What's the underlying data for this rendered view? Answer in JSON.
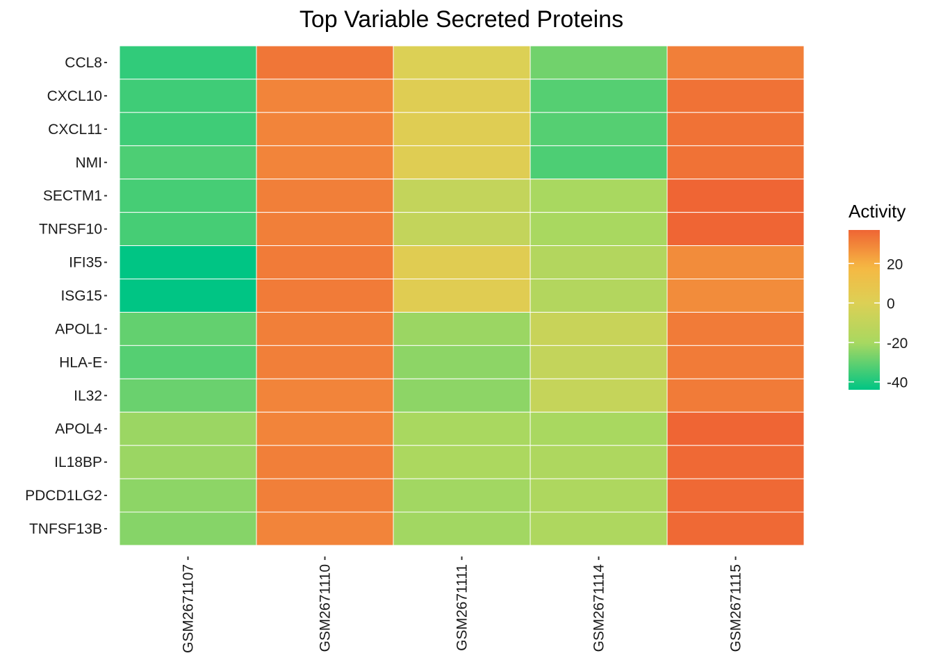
{
  "colors": {
    "scale_low": "#00c584",
    "scale_mid_low": "#a9d860",
    "scale_mid": "#dcd055",
    "scale_mid_high": "#f6b843",
    "scale_high": "#ef6534",
    "tick": "#333333",
    "cell_border": "#ffffff"
  },
  "chart_data": {
    "type": "heatmap",
    "title": "Top Variable Secreted Proteins",
    "xlabel": "",
    "ylabel": "",
    "x": [
      "GSM2671107",
      "GSM2671110",
      "GSM2671111",
      "GSM2671114",
      "GSM2671115"
    ],
    "y": [
      "CCL8",
      "CXCL10",
      "CXCL11",
      "NMI",
      "SECTM1",
      "TNFSF10",
      "IFI35",
      "ISG15",
      "APOL1",
      "HLA-E",
      "IL32",
      "APOL4",
      "IL18BP",
      "PDCD1LG2",
      "TNFSF13B"
    ],
    "values": [
      [
        -37,
        33,
        0,
        -28,
        31
      ],
      [
        -35,
        30,
        2,
        -32,
        34
      ],
      [
        -35,
        30,
        2,
        -32,
        34
      ],
      [
        -33,
        30,
        2,
        -33,
        34
      ],
      [
        -34,
        31,
        -10,
        -20,
        37
      ],
      [
        -34,
        31,
        -10,
        -20,
        37
      ],
      [
        -44,
        32,
        3,
        -16,
        28
      ],
      [
        -44,
        32,
        3,
        -16,
        28
      ],
      [
        -30,
        31,
        -22,
        -8,
        32
      ],
      [
        -32,
        31,
        -24,
        -10,
        32
      ],
      [
        -29,
        30,
        -24,
        -9,
        32
      ],
      [
        -22,
        30,
        -20,
        -20,
        37
      ],
      [
        -22,
        31,
        -19,
        -18,
        36
      ],
      [
        -24,
        31,
        -21,
        -18,
        36
      ],
      [
        -25,
        30,
        -21,
        -18,
        36
      ]
    ],
    "legend": {
      "title": "Activity",
      "ticks": [
        20,
        0,
        -20,
        -40
      ],
      "tick_labels": [
        "20",
        "0",
        "-20",
        "-40"
      ],
      "range": [
        -44,
        37
      ],
      "position": "right"
    },
    "grid": false
  }
}
